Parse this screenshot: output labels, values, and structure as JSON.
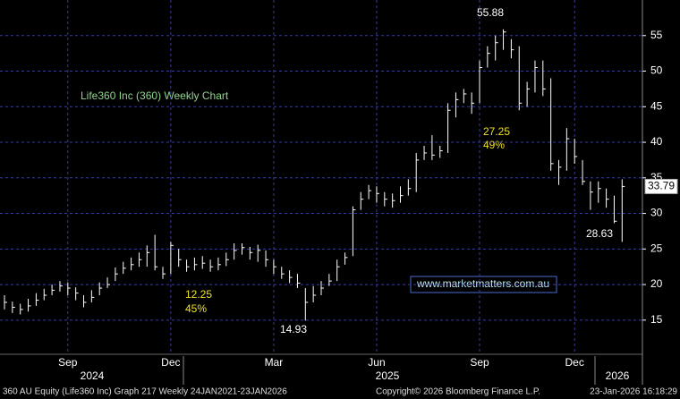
{
  "chart_data": {
    "type": "ohlc",
    "title": "Life360 Inc (360) Weekly Chart",
    "categories": [
      null,
      null,
      null,
      null,
      null,
      null,
      null,
      null,
      "Sep",
      null,
      null,
      null,
      null,
      null,
      null,
      null,
      null,
      null,
      null,
      null,
      null,
      "Dec",
      null,
      null,
      null,
      null,
      null,
      null,
      null,
      null,
      null,
      null,
      null,
      null,
      "Mar",
      null,
      null,
      null,
      null,
      null,
      null,
      null,
      null,
      null,
      null,
      null,
      null,
      "Jun",
      null,
      null,
      null,
      null,
      null,
      null,
      null,
      null,
      null,
      null,
      null,
      null,
      "Sep",
      null,
      null,
      null,
      null,
      null,
      null,
      null,
      null,
      null,
      null,
      null,
      "Dec",
      null,
      null,
      null,
      null,
      null,
      null
    ],
    "years": [
      "2024",
      "2025",
      "2026"
    ],
    "high": [
      18.5,
      17.6,
      17.3,
      18,
      18.8,
      19.4,
      20,
      20.5,
      20.3,
      19.6,
      18.5,
      19.2,
      20.3,
      21,
      22.4,
      23.2,
      23.8,
      24.5,
      25.5,
      27,
      22.5,
      26,
      25,
      23.5,
      23.8,
      24,
      23.5,
      23.8,
      24.5,
      25.8,
      25.8,
      25.3,
      25.6,
      24.8,
      23.5,
      22.5,
      22,
      21.5,
      19.5,
      19.8,
      20.5,
      21.5,
      23.5,
      24.5,
      31,
      33,
      34,
      33.8,
      33,
      32.8,
      33.8,
      34.8,
      38.5,
      39.5,
      41,
      39.5,
      45.5,
      47,
      47.5,
      47,
      51.5,
      53.5,
      55,
      55.88,
      54.5,
      53.5,
      48.5,
      51.5,
      51.5,
      49,
      37.5,
      42,
      40.5,
      37.5,
      34.5,
      34.5,
      33.5,
      32.5,
      34.8
    ],
    "low": [
      16.5,
      16,
      15.8,
      16.2,
      17,
      17.8,
      18.5,
      19,
      18.5,
      17.8,
      16.8,
      17.5,
      18.5,
      19.5,
      20.5,
      21.5,
      22,
      22.5,
      22.5,
      22,
      20.8,
      21.5,
      22.5,
      21.8,
      22,
      22.2,
      21.8,
      22,
      22.6,
      23.5,
      24.2,
      23.5,
      23.2,
      22.5,
      21.5,
      20.8,
      20.2,
      19.5,
      14.93,
      17.5,
      18.5,
      19.8,
      20.5,
      22.8,
      24,
      30.5,
      32,
      31.5,
      31,
      30.8,
      31.5,
      32.5,
      33,
      37.5,
      37.5,
      37.8,
      38.5,
      43.5,
      45.5,
      44,
      45.5,
      50.5,
      51.5,
      53,
      51.8,
      44.5,
      45,
      47,
      46.5,
      36,
      34,
      36,
      37,
      34,
      30.5,
      31.5,
      30.8,
      28.63,
      26
    ],
    "close": [
      17.5,
      16.8,
      16.5,
      17,
      17.8,
      18.5,
      19.2,
      19.8,
      19.5,
      18.8,
      17.5,
      18.2,
      19.5,
      20,
      21.5,
      22.3,
      22.8,
      23.5,
      24.5,
      22.5,
      21.5,
      25.5,
      23.5,
      22.5,
      22.8,
      23,
      22.5,
      22.8,
      23.5,
      24.8,
      25.2,
      24.5,
      24.8,
      23.5,
      22.5,
      21.5,
      21,
      20.2,
      17.5,
      18.5,
      19.5,
      20.5,
      22.5,
      23.8,
      30.5,
      32,
      33.2,
      32.8,
      32,
      31.8,
      32.5,
      33.5,
      37.5,
      38.5,
      38.2,
      38.8,
      44.5,
      46,
      46.8,
      45.5,
      50.5,
      52.5,
      54,
      55.5,
      53,
      45.5,
      47.5,
      50.5,
      47.5,
      37,
      36.5,
      40.5,
      38,
      34.5,
      33,
      33.5,
      32,
      28.9,
      33.79
    ],
    "color": "#ffffff",
    "ylim": [
      10.2,
      60
    ],
    "yticks": [
      15,
      20,
      25,
      30,
      35,
      40,
      45,
      50,
      55
    ],
    "grid": true,
    "annotations": [
      "55.88",
      "27.25",
      "49%",
      "12.25",
      "45%",
      "14.93",
      "28.63"
    ],
    "watermark": "www.marketmatters.com.au"
  },
  "footer": {
    "left": "360 AU Equity (Life360 Inc) Graph 217 Weekly 24JAN2021-23JAN2026",
    "center": "Copyright© 2026 Bloomberg Finance L.P.",
    "right": "23-Jan-2026 16:18:29"
  }
}
